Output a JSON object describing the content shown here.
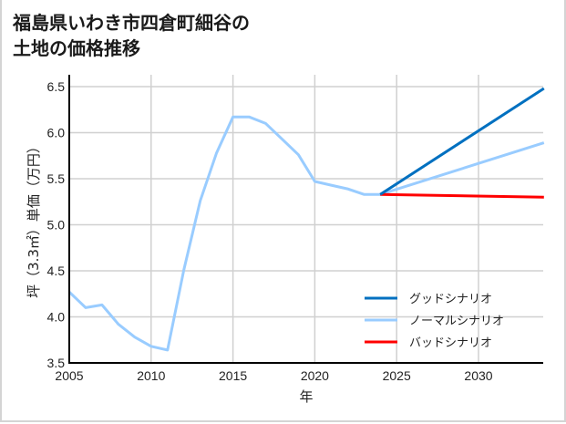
{
  "title_line1": "福島県いわき市四倉町細谷の",
  "title_line2": "土地の価格推移",
  "chart_data": {
    "type": "line",
    "title": "福島県いわき市四倉町細谷の土地の価格推移",
    "xlabel": "年",
    "ylabel": "坪（3.3㎡）単価（万円）",
    "xlim": [
      2005,
      2034
    ],
    "ylim": [
      3.5,
      6.6
    ],
    "xticks": [
      2005,
      2010,
      2015,
      2020,
      2025,
      2030
    ],
    "yticks": [
      3.5,
      4.0,
      4.5,
      5.0,
      5.5,
      6.0,
      6.5
    ],
    "ytick_labels": [
      "3.5",
      "4.0",
      "4.5",
      "5.0",
      "5.5",
      "6.0",
      "6.5"
    ],
    "grid": true,
    "legend_position": "lower right",
    "series": [
      {
        "name": "グッドシナリオ",
        "color": "#0070c0",
        "x": [
          2024,
          2034
        ],
        "values": [
          5.33,
          6.48
        ]
      },
      {
        "name": "ノーマルシナリオ",
        "color": "#99ccff",
        "x": [
          2005,
          2006,
          2007,
          2008,
          2009,
          2010,
          2011,
          2012,
          2013,
          2014,
          2015,
          2016,
          2017,
          2018,
          2019,
          2020,
          2021,
          2022,
          2023,
          2024,
          2034
        ],
        "values": [
          4.27,
          4.1,
          4.13,
          3.92,
          3.78,
          3.68,
          3.64,
          4.51,
          5.26,
          5.78,
          6.17,
          6.17,
          6.1,
          5.93,
          5.76,
          5.47,
          5.43,
          5.39,
          5.33,
          5.33,
          5.89
        ]
      },
      {
        "name": "バッドシナリオ",
        "color": "#ff0000",
        "x": [
          2024,
          2034
        ],
        "values": [
          5.33,
          5.3
        ]
      }
    ]
  }
}
